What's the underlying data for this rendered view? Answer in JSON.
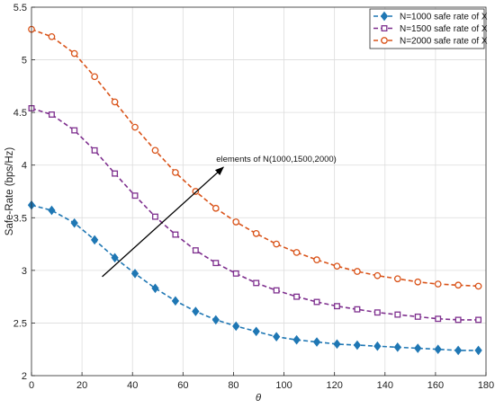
{
  "chart_data": {
    "type": "line",
    "xlabel": "θ",
    "ylabel": "Safe-Rate (bps/Hz)",
    "xlim": [
      0,
      180
    ],
    "ylim": [
      2,
      5.5
    ],
    "xticks": [
      "0",
      "20",
      "40",
      "60",
      "80",
      "100",
      "120",
      "140",
      "160",
      "180"
    ],
    "yticks": [
      "2",
      "2.5",
      "3",
      "3.5",
      "4",
      "4.5",
      "5",
      "5.5"
    ],
    "grid": true,
    "legend_position": "top-right",
    "x": [
      0,
      8,
      17,
      25,
      33,
      41,
      49,
      57,
      65,
      73,
      81,
      89,
      97,
      105,
      113,
      121,
      129,
      137,
      145,
      153,
      161,
      169,
      177
    ],
    "series": [
      {
        "name": "N=1000 safe rate of X",
        "color": "#1f77b4",
        "marker": "diamond",
        "values": [
          3.62,
          3.57,
          3.45,
          3.29,
          3.12,
          2.97,
          2.83,
          2.71,
          2.61,
          2.53,
          2.47,
          2.42,
          2.37,
          2.34,
          2.32,
          2.3,
          2.29,
          2.28,
          2.27,
          2.26,
          2.25,
          2.24,
          2.24
        ]
      },
      {
        "name": "N=1500 safe rate of X",
        "color": "#7e2f8e",
        "marker": "square",
        "values": [
          4.54,
          4.48,
          4.33,
          4.14,
          3.92,
          3.71,
          3.51,
          3.34,
          3.19,
          3.07,
          2.97,
          2.88,
          2.81,
          2.75,
          2.7,
          2.66,
          2.63,
          2.6,
          2.58,
          2.56,
          2.54,
          2.53,
          2.53
        ]
      },
      {
        "name": "N=2000 safe rate of X",
        "color": "#d95319",
        "marker": "circle",
        "values": [
          5.29,
          5.22,
          5.06,
          4.84,
          4.6,
          4.36,
          4.14,
          3.93,
          3.75,
          3.59,
          3.46,
          3.35,
          3.25,
          3.17,
          3.1,
          3.04,
          2.99,
          2.95,
          2.92,
          2.89,
          2.87,
          2.86,
          2.85
        ]
      }
    ],
    "annotation": {
      "text": "elements of N(1000,1500,2000)",
      "arrow_from": [
        28,
        2.94
      ],
      "arrow_to": [
        76,
        3.98
      ]
    }
  }
}
